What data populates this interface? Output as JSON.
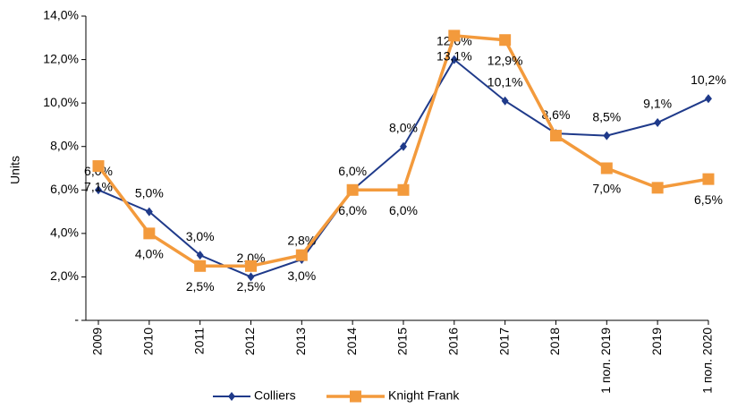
{
  "chart_data": {
    "type": "line",
    "y_label": "Units",
    "categories": [
      "2009",
      "2010",
      "2011",
      "2012",
      "2013",
      "2014",
      "2015",
      "2016",
      "2017",
      "2018",
      "1 пол. 2019",
      "2019",
      "1 пол. 2020"
    ],
    "series": [
      {
        "name": "Colliers",
        "color": "#1f3a8a",
        "marker": "diamond",
        "values": [
          6.0,
          5.0,
          3.0,
          2.0,
          2.8,
          6.0,
          8.0,
          12.0,
          10.1,
          8.6,
          8.5,
          9.1,
          10.2
        ],
        "value_labels": [
          "6,0%",
          "5,0%",
          "3,0%",
          "2,0%",
          "2,8%",
          "6,0%",
          "8,0%",
          "12,0%",
          "10,1%",
          "8,6%",
          "8,5%",
          "9,1%",
          "10,2%"
        ]
      },
      {
        "name": "Knight Frank",
        "color": "#f39a3c",
        "marker": "square",
        "values": [
          7.1,
          4.0,
          2.5,
          2.5,
          3.0,
          6.0,
          6.0,
          13.1,
          12.9,
          8.5,
          7.0,
          6.1,
          6.5
        ],
        "value_labels": [
          "7,1%",
          "4,0%",
          "2,5%",
          "2,5%",
          "3,0%",
          "6,0%",
          "6,0%",
          "13,1%",
          "12,9%",
          null,
          "7,0%",
          null,
          "6,5%"
        ]
      }
    ],
    "ylim": [
      0,
      14
    ],
    "yticks": [
      {
        "value": 0,
        "label": "-"
      },
      {
        "value": 2,
        "label": "2,0%"
      },
      {
        "value": 4,
        "label": "4,0%"
      },
      {
        "value": 6,
        "label": "6,0%"
      },
      {
        "value": 8,
        "label": "8,0%"
      },
      {
        "value": 10,
        "label": "10,0%"
      },
      {
        "value": 12,
        "label": "12,0%"
      },
      {
        "value": 14,
        "label": "14,0%"
      }
    ],
    "grid": false,
    "legend": "bottom"
  }
}
